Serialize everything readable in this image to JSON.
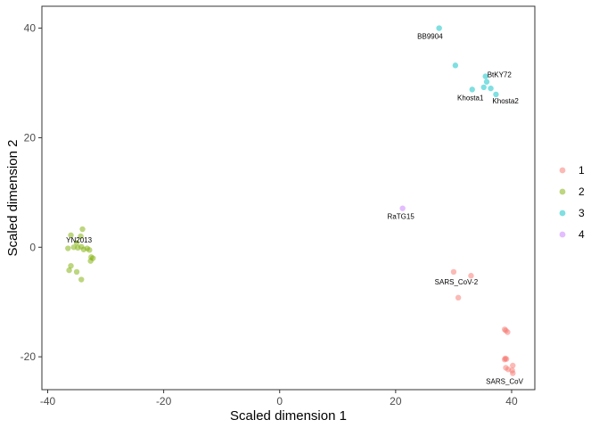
{
  "chart_data": {
    "type": "scatter",
    "xlabel": "Scaled dimension 1",
    "ylabel": "Scaled dimension 2",
    "xlim": [
      -41,
      44
    ],
    "ylim": [
      -26,
      44
    ],
    "x_ticks": [
      -40,
      -20,
      0,
      20,
      40
    ],
    "y_ticks": [
      -20,
      0,
      20,
      40
    ],
    "x_tick_labels": [
      "-40",
      "-20",
      "0",
      "20",
      "40"
    ],
    "y_tick_labels": [
      "-20",
      "0",
      "20",
      "40"
    ],
    "grid": false,
    "legend_position": "right",
    "series": [
      {
        "name": "1",
        "color": "#F8766D",
        "points": [
          [
            30.0,
            -4.5
          ],
          [
            33.0,
            -5.2
          ],
          [
            30.8,
            -9.2
          ],
          [
            38.8,
            -15.0
          ],
          [
            39.0,
            -15.2
          ],
          [
            39.3,
            -15.5
          ],
          [
            38.9,
            -20.3
          ],
          [
            39.1,
            -20.4
          ],
          [
            38.8,
            -20.5
          ],
          [
            40.2,
            -21.6
          ],
          [
            39.0,
            -22.0
          ],
          [
            39.4,
            -22.3
          ],
          [
            40.1,
            -22.5
          ],
          [
            40.2,
            -23.0
          ]
        ]
      },
      {
        "name": "2",
        "color": "#7CAE00",
        "points": [
          [
            -34.0,
            3.3
          ],
          [
            -36.0,
            2.2
          ],
          [
            -34.3,
            2.0
          ],
          [
            -35.0,
            0.8
          ],
          [
            -36.5,
            -0.2
          ],
          [
            -35.5,
            0.0
          ],
          [
            -34.8,
            -0.1
          ],
          [
            -34.2,
            0.1
          ],
          [
            -33.8,
            -0.4
          ],
          [
            -33.2,
            -0.2
          ],
          [
            -32.8,
            -0.5
          ],
          [
            -32.5,
            -1.8
          ],
          [
            -32.2,
            -2.0
          ],
          [
            -32.6,
            -2.5
          ],
          [
            -36.0,
            -3.4
          ],
          [
            -36.3,
            -4.2
          ],
          [
            -35.0,
            -4.5
          ],
          [
            -34.2,
            -5.9
          ]
        ]
      },
      {
        "name": "3",
        "color": "#00BFC4",
        "points": [
          [
            27.5,
            40.0
          ],
          [
            30.3,
            33.2
          ],
          [
            35.5,
            31.2
          ],
          [
            35.7,
            30.2
          ],
          [
            35.2,
            29.2
          ],
          [
            36.4,
            29.0
          ],
          [
            33.2,
            28.8
          ],
          [
            37.3,
            27.9
          ]
        ]
      },
      {
        "name": "4",
        "color": "#C77CFF",
        "points": [
          [
            21.2,
            7.1
          ]
        ]
      }
    ],
    "annotations": [
      {
        "text": "BB9904",
        "x": 27.5,
        "y": 40.0,
        "anchor": "end",
        "dx": 4,
        "dy": 12
      },
      {
        "text": "BtKY72",
        "x": 35.5,
        "y": 31.2,
        "anchor": "start",
        "dx": 2,
        "dy": 1
      },
      {
        "text": "Khosta1",
        "x": 33.2,
        "y": 28.8,
        "anchor": "middle",
        "dx": -2,
        "dy": 12
      },
      {
        "text": "Khosta2",
        "x": 37.3,
        "y": 27.9,
        "anchor": "start",
        "dx": -4,
        "dy": 10
      },
      {
        "text": "RaTG15",
        "x": 21.2,
        "y": 7.1,
        "anchor": "middle",
        "dx": -2,
        "dy": 12
      },
      {
        "text": "YN2013",
        "x": -34.3,
        "y": 2.0,
        "anchor": "middle",
        "dx": -2,
        "dy": 7
      },
      {
        "text": "SARS_CoV-2",
        "x": 30.0,
        "y": -4.5,
        "anchor": "middle",
        "dx": 3,
        "dy": 14
      },
      {
        "text": "SARS_CoV",
        "x": 39.4,
        "y": -22.3,
        "anchor": "middle",
        "dx": -4,
        "dy": 16
      }
    ]
  }
}
